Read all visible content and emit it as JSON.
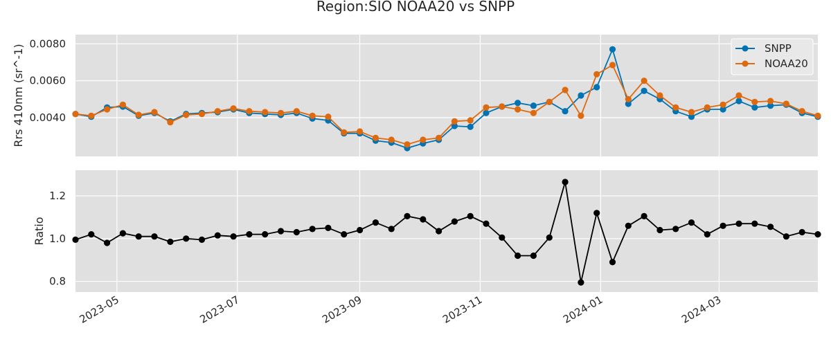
{
  "chart_data": {
    "title": "Region:SIO NOAA20 vs SNPP",
    "type": "line",
    "x": [
      "2023-04-10",
      "2023-04-18",
      "2023-04-26",
      "2023-05-04",
      "2023-05-12",
      "2023-05-20",
      "2023-05-28",
      "2023-06-05",
      "2023-06-13",
      "2023-06-21",
      "2023-06-29",
      "2023-07-07",
      "2023-07-15",
      "2023-07-23",
      "2023-07-31",
      "2023-08-08",
      "2023-08-16",
      "2023-08-24",
      "2023-09-01",
      "2023-09-09",
      "2023-09-17",
      "2023-09-25",
      "2023-10-03",
      "2023-10-11",
      "2023-10-19",
      "2023-10-27",
      "2023-11-04",
      "2023-11-12",
      "2023-11-20",
      "2023-11-28",
      "2023-12-06",
      "2023-12-14",
      "2023-12-22",
      "2023-12-30",
      "2024-01-07",
      "2024-01-15",
      "2024-01-23",
      "2024-01-31",
      "2024-02-08",
      "2024-02-16",
      "2024-02-24",
      "2024-03-03",
      "2024-03-11",
      "2024-03-19",
      "2024-03-27",
      "2024-04-04",
      "2024-04-12",
      "2024-04-20"
    ],
    "xlim": [
      "2023-04-10",
      "2024-04-20"
    ],
    "xticks": [
      "2023-05-01",
      "2023-07-01",
      "2023-09-01",
      "2023-11-01",
      "2024-01-01",
      "2024-03-01"
    ],
    "xticklabels": [
      "2023-05",
      "2023-07",
      "2023-09",
      "2023-11",
      "2024-01",
      "2024-03"
    ],
    "top": {
      "ylabel": "Rrs 410nm (sr^-1)",
      "ylim": [
        0.0019,
        0.0085
      ],
      "yticks": [
        0.004,
        0.006,
        0.008
      ],
      "yticklabels": [
        "0.0040",
        "0.0060",
        "0.0080"
      ],
      "legend": "top-right",
      "series": [
        {
          "name": "SNPP",
          "color": "#0173b2",
          "values": [
            0.0042,
            0.00405,
            0.00455,
            0.0046,
            0.0041,
            0.00425,
            0.0038,
            0.0042,
            0.00425,
            0.0043,
            0.00445,
            0.00425,
            0.0042,
            0.00415,
            0.00425,
            0.00395,
            0.00385,
            0.00315,
            0.00315,
            0.00275,
            0.00265,
            0.00235,
            0.0026,
            0.0028,
            0.00355,
            0.0035,
            0.00425,
            0.0046,
            0.0048,
            0.00465,
            0.00485,
            0.00435,
            0.0052,
            0.00565,
            0.0077,
            0.00475,
            0.00545,
            0.005,
            0.00435,
            0.00405,
            0.00445,
            0.00445,
            0.0049,
            0.00455,
            0.00465,
            0.0047,
            0.00425,
            0.00405
          ]
        },
        {
          "name": "NOAA20",
          "color": "#de6a10",
          "values": [
            0.0042,
            0.0041,
            0.00445,
            0.0047,
            0.00415,
            0.0043,
            0.00375,
            0.00415,
            0.0042,
            0.00435,
            0.0045,
            0.00435,
            0.0043,
            0.00425,
            0.00435,
            0.0041,
            0.00405,
            0.0032,
            0.00325,
            0.0029,
            0.0028,
            0.00255,
            0.0028,
            0.0029,
            0.0038,
            0.00385,
            0.00455,
            0.0046,
            0.00445,
            0.00425,
            0.00485,
            0.0055,
            0.0041,
            0.00635,
            0.00685,
            0.005,
            0.006,
            0.0052,
            0.00455,
            0.0043,
            0.00455,
            0.0047,
            0.0052,
            0.00485,
            0.0049,
            0.00475,
            0.00435,
            0.0041
          ]
        }
      ]
    },
    "bottom": {
      "ylabel": "Ratio",
      "ylim": [
        0.75,
        1.32
      ],
      "yticks": [
        0.8,
        1.0,
        1.2
      ],
      "yticklabels": [
        "0.8",
        "1.0",
        "1.2"
      ],
      "series": [
        {
          "name": "",
          "color": "#000000",
          "values": [
            0.995,
            1.02,
            0.98,
            1.025,
            1.01,
            1.01,
            0.985,
            1.0,
            0.995,
            1.015,
            1.01,
            1.02,
            1.02,
            1.035,
            1.03,
            1.045,
            1.05,
            1.02,
            1.04,
            1.075,
            1.045,
            1.105,
            1.09,
            1.035,
            1.08,
            1.105,
            1.07,
            1.005,
            0.92,
            0.92,
            1.005,
            1.265,
            0.795,
            1.12,
            0.89,
            1.06,
            1.105,
            1.04,
            1.045,
            1.075,
            1.02,
            1.06,
            1.07,
            1.07,
            1.055,
            1.01,
            1.03,
            1.02
          ]
        }
      ]
    }
  }
}
